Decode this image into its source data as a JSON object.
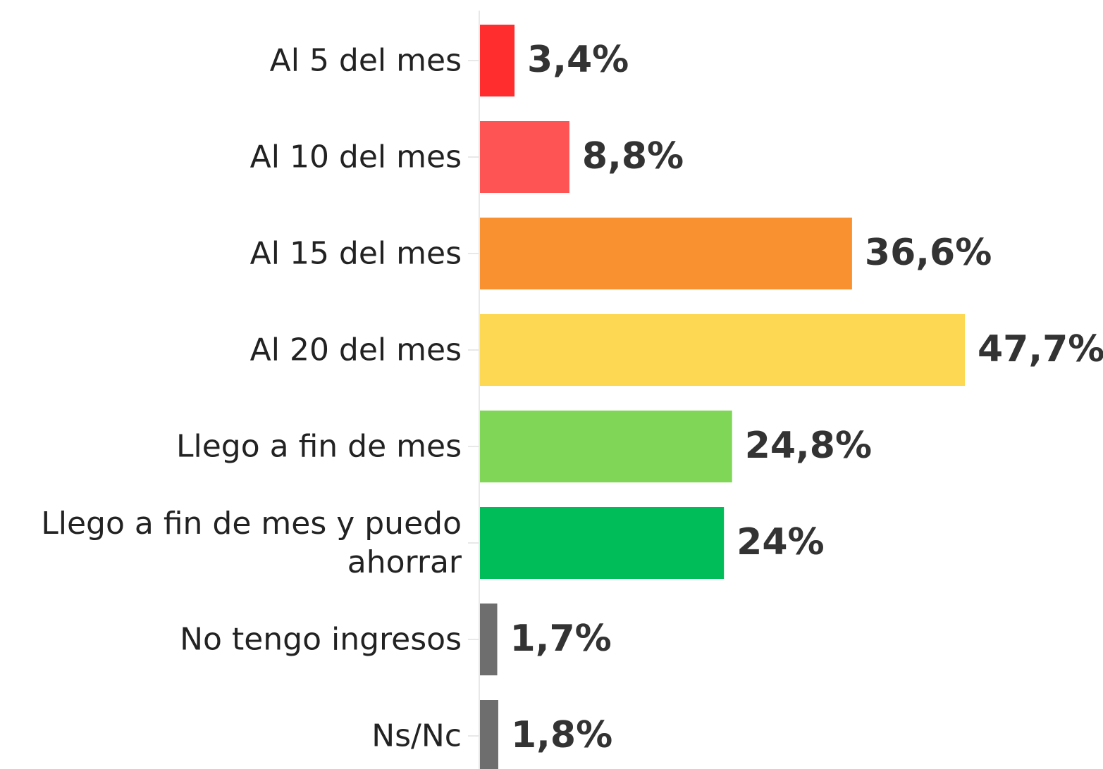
{
  "chart_data": {
    "type": "bar",
    "orientation": "horizontal",
    "categories": [
      "Al 5 del mes",
      "Al 10 del mes",
      "Al 15 del mes",
      "Al 20 del mes",
      "Llego a fin de mes",
      "Llego a fin de mes y puedo ahorrar",
      "No tengo ingresos",
      "Ns/Nc"
    ],
    "values": [
      3.4,
      8.8,
      36.6,
      47.7,
      24.8,
      24,
      1.7,
      1.8
    ],
    "value_labels": [
      "3,4%",
      "8,8%",
      "36,6%",
      "47,7%",
      "24,8%",
      "24%",
      "1,7%",
      "1,8%"
    ],
    "colors": [
      "#ff2d2d",
      "#ff5454",
      "#f99130",
      "#fdd853",
      "#7fd657",
      "#00bd5a",
      "#6e6e6e",
      "#6e6e6e"
    ]
  }
}
